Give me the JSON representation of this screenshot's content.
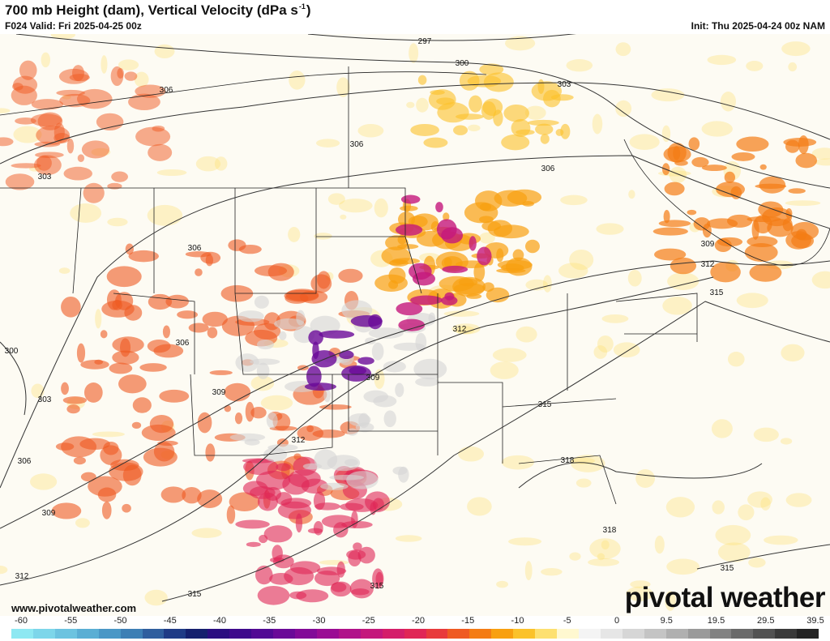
{
  "header": {
    "title": "700 mb Height (dam), Vertical Velocity (dPa s",
    "title_sup": "-1",
    "title_end": ")",
    "valid": "F024 Valid: Fri 2025-04-25 00z",
    "init": "Init: Thu 2025-04-24 00z NAM"
  },
  "footer": {
    "website": "www.pivotalweather.com",
    "logo": "pivotal weather"
  },
  "colorbar": {
    "ticks": [
      "-60",
      "-55",
      "-50",
      "-45",
      "-40",
      "-35",
      "-30",
      "-25",
      "-20",
      "-15",
      "-10",
      "-5",
      "0",
      "9.5",
      "19.5",
      "29.5",
      "39.5"
    ],
    "colors": [
      "#8ee8f2",
      "#7dd6ea",
      "#6cc3e0",
      "#5aaed4",
      "#4a97c6",
      "#3d7fb5",
      "#2f5e9e",
      "#1f3b86",
      "#15206e",
      "#2a0e80",
      "#3e0a8c",
      "#520a94",
      "#6a0a98",
      "#820a98",
      "#9a0c94",
      "#b0128a",
      "#c4187c",
      "#d41e6a",
      "#e02656",
      "#e83a3c",
      "#ef5a22",
      "#f47c14",
      "#f8a010",
      "#fbc22a",
      "#fde070",
      "#fff8d0",
      "#f4f4f4",
      "#e6e6e6",
      "#d6d6d6",
      "#c4c4c4",
      "#b0b0b0",
      "#9a9a9a",
      "#828282",
      "#6a6a6a",
      "#525252",
      "#3a3a3a",
      "#242424"
    ]
  },
  "contour_labels": [
    "297",
    "300",
    "303",
    "306",
    "306",
    "303",
    "306",
    "306",
    "309",
    "312",
    "315",
    "306",
    "300",
    "312",
    "309",
    "309",
    "303",
    "315",
    "312",
    "306",
    "318",
    "309",
    "318",
    "312",
    "315",
    "315",
    "315"
  ]
}
